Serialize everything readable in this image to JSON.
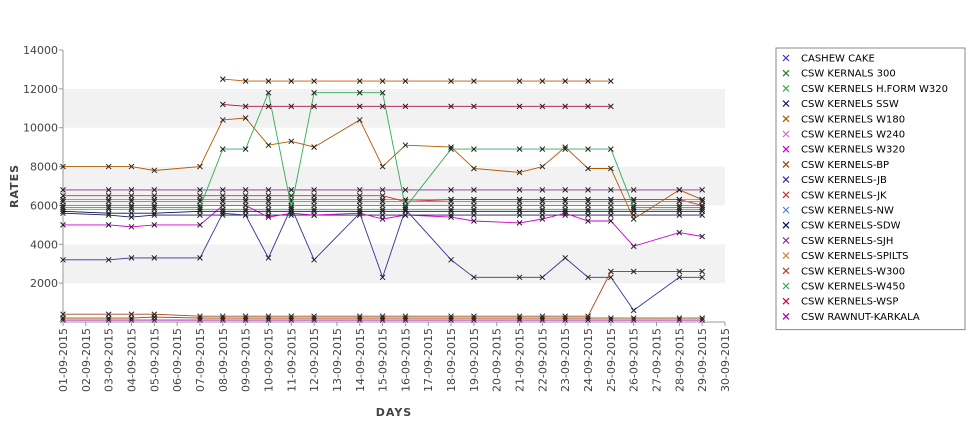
{
  "chart_data": {
    "type": "line",
    "xlabel": "DAYS",
    "ylabel": "RATES",
    "ylim": [
      0,
      14000
    ],
    "yticks": [
      2000,
      4000,
      6000,
      8000,
      10000,
      12000,
      14000
    ],
    "grid": "alternating horizontal bands",
    "legend_position": "right",
    "marker": "x",
    "categories": [
      "01-09-2015",
      "02-09-2015",
      "03-09-2015",
      "04-09-2015",
      "05-09-2015",
      "06-09-2015",
      "07-09-2015",
      "08-09-2015",
      "09-09-2015",
      "10-09-2015",
      "11-09-2015",
      "12-09-2015",
      "13-09-2015",
      "14-09-2015",
      "15-09-2015",
      "16-09-2015",
      "17-09-2015",
      "18-09-2015",
      "19-09-2015",
      "20-09-2015",
      "21-09-2015",
      "22-09-2015",
      "23-09-2015",
      "24-09-2015",
      "25-09-2015",
      "26-09-2015",
      "27-09-2015",
      "28-09-2015",
      "29-09-2015",
      "30-09-2015"
    ],
    "series": [
      {
        "name": "CASHEW CAKE",
        "color": "#3333cc",
        "values": [
          null,
          null,
          null,
          null,
          null,
          null,
          null,
          null,
          null,
          null,
          null,
          null,
          null,
          null,
          null,
          null,
          null,
          null,
          null,
          null,
          null,
          null,
          null,
          null,
          null,
          null,
          null,
          null,
          null,
          null
        ]
      },
      {
        "name": "CSW KERNALS 300",
        "color": "#2a7a2a",
        "values": [
          null,
          null,
          null,
          null,
          null,
          null,
          null,
          null,
          null,
          null,
          null,
          null,
          null,
          null,
          null,
          null,
          null,
          null,
          null,
          null,
          null,
          null,
          null,
          null,
          null,
          null,
          null,
          null,
          null,
          null
        ]
      },
      {
        "name": "CSW KERNELS H.FORM W320",
        "color": "#44aa44",
        "values": [
          5800,
          null,
          5800,
          5800,
          5800,
          null,
          5800,
          5800,
          5800,
          5800,
          5800,
          5800,
          null,
          5800,
          5800,
          5800,
          null,
          5800,
          5800,
          null,
          5800,
          5800,
          5800,
          5800,
          5800,
          5800,
          null,
          5800,
          5800,
          null
        ]
      },
      {
        "name": "CSW KERNELS SSW",
        "color": "#1a1a66",
        "values": [
          5600,
          null,
          5500,
          5400,
          5500,
          null,
          5500,
          5500,
          5500,
          5500,
          5500,
          5500,
          null,
          5500,
          5500,
          5500,
          null,
          5500,
          5500,
          null,
          5500,
          5500,
          5500,
          5500,
          5500,
          5500,
          null,
          5500,
          5500,
          null
        ]
      },
      {
        "name": "CSW KERNELS W180",
        "color": "#b35900",
        "values": [
          8000,
          null,
          8000,
          8000,
          7800,
          null,
          8000,
          10400,
          10500,
          9100,
          9300,
          9000,
          null,
          10400,
          8000,
          9100,
          null,
          9000,
          7900,
          null,
          7700,
          8000,
          9000,
          7900,
          7900,
          5300,
          null,
          6800,
          6300,
          null
        ]
      },
      {
        "name": "CSW KERNELS W240",
        "color": "#cc66cc",
        "values": [
          6300,
          null,
          6300,
          6300,
          6300,
          null,
          6300,
          6300,
          6300,
          6300,
          6300,
          6300,
          null,
          6300,
          6300,
          6300,
          null,
          6300,
          6300,
          null,
          6300,
          6300,
          6300,
          6300,
          6300,
          6300,
          null,
          6300,
          6300,
          null
        ]
      },
      {
        "name": "CSW KERNELS W320",
        "color": "#cc00cc",
        "values": [
          5000,
          null,
          5000,
          4900,
          5000,
          null,
          5000,
          6000,
          6000,
          5400,
          5600,
          5500,
          null,
          5600,
          5300,
          5500,
          null,
          5400,
          5200,
          null,
          5100,
          5300,
          5600,
          5200,
          5200,
          3900,
          null,
          4600,
          4400,
          null
        ]
      },
      {
        "name": "CSW KERNELS-BP",
        "color": "#994400",
        "values": [
          200,
          null,
          200,
          200,
          250,
          null,
          200,
          200,
          200,
          200,
          200,
          200,
          null,
          200,
          200,
          200,
          null,
          200,
          200,
          null,
          200,
          200,
          200,
          200,
          200,
          200,
          null,
          200,
          200,
          null
        ]
      },
      {
        "name": "CSW KERNELS-JB",
        "color": "#333399",
        "values": [
          3200,
          null,
          3200,
          3300,
          3300,
          null,
          3300,
          5600,
          5500,
          3300,
          5900,
          3200,
          null,
          5600,
          2300,
          5800,
          null,
          3200,
          2300,
          null,
          2300,
          2300,
          3300,
          2300,
          2300,
          600,
          null,
          2300,
          2300,
          null
        ]
      },
      {
        "name": "CSW KERNELS-JK",
        "color": "#cc3333",
        "values": [
          6500,
          null,
          6500,
          6500,
          6500,
          null,
          6500,
          6500,
          6500,
          6500,
          6500,
          6500,
          null,
          6500,
          6500,
          6200,
          null,
          6300,
          6300,
          null,
          6300,
          6300,
          6300,
          6300,
          6300,
          6300,
          null,
          6300,
          6000,
          null
        ]
      },
      {
        "name": "CSW KERNELS-NW",
        "color": "#4488cc",
        "values": [
          6000,
          null,
          6000,
          6000,
          6000,
          null,
          6000,
          6000,
          6000,
          6000,
          6000,
          6000,
          null,
          6000,
          6000,
          6000,
          null,
          6000,
          6000,
          null,
          6000,
          6000,
          6000,
          6000,
          6000,
          6000,
          null,
          6000,
          6000,
          null
        ]
      },
      {
        "name": "CSW KERNELS-SDW",
        "color": "#0a0a55",
        "values": [
          5700,
          null,
          5600,
          5600,
          5600,
          null,
          5700,
          5700,
          5700,
          5700,
          5700,
          5700,
          null,
          5700,
          5700,
          5700,
          null,
          5700,
          5700,
          null,
          5700,
          5700,
          5700,
          5700,
          5700,
          5700,
          null,
          5700,
          5700,
          null
        ]
      },
      {
        "name": "CSW KERNELS-SJH",
        "color": "#883388",
        "values": [
          6800,
          null,
          6800,
          6800,
          6800,
          null,
          6800,
          6800,
          6800,
          6800,
          6800,
          6800,
          null,
          6800,
          6800,
          6800,
          null,
          6800,
          6800,
          null,
          6800,
          6800,
          6800,
          6800,
          6800,
          6800,
          null,
          6800,
          6800,
          null
        ]
      },
      {
        "name": "CSW KERNELS-SPILTS",
        "color": "#cc8833",
        "values": [
          6200,
          null,
          6200,
          6200,
          6200,
          null,
          6200,
          6200,
          6200,
          6200,
          6200,
          6200,
          null,
          6200,
          6200,
          6200,
          null,
          6200,
          6200,
          null,
          6200,
          6200,
          6200,
          6200,
          6200,
          6200,
          null,
          6200,
          6200,
          null
        ]
      },
      {
        "name": "CSW KERNELS-W300",
        "color": "#aa4422",
        "values": [
          400,
          null,
          400,
          400,
          400,
          null,
          300,
          300,
          300,
          300,
          300,
          300,
          null,
          300,
          300,
          300,
          null,
          300,
          300,
          null,
          300,
          300,
          300,
          300,
          2600,
          2600,
          null,
          2600,
          2600,
          null
        ]
      },
      {
        "name": "CSW KERNELS-W450",
        "color": "#33aa55",
        "values": [
          5900,
          null,
          5900,
          5900,
          5900,
          null,
          5900,
          8900,
          8900,
          11800,
          5900,
          11800,
          null,
          11800,
          11800,
          5900,
          null,
          8900,
          8900,
          null,
          8900,
          8900,
          8900,
          8900,
          8900,
          5900,
          null,
          5900,
          5900,
          null
        ]
      },
      {
        "name": "CSW KERNELS-WSP",
        "color": "#aa1144",
        "values": [
          null,
          null,
          null,
          null,
          null,
          null,
          null,
          11200,
          11100,
          11100,
          11100,
          11100,
          null,
          11100,
          11100,
          11100,
          null,
          11100,
          11100,
          null,
          11100,
          11100,
          11100,
          11100,
          11100,
          null,
          null,
          null,
          null,
          null
        ]
      },
      {
        "name": "CSW RAWNUT-KARKALA",
        "color": "#aa00aa",
        "values": [
          100,
          null,
          100,
          100,
          100,
          null,
          100,
          100,
          100,
          100,
          100,
          100,
          null,
          100,
          100,
          100,
          null,
          100,
          100,
          null,
          100,
          100,
          100,
          100,
          100,
          100,
          null,
          100,
          100,
          null
        ]
      },
      {
        "name": "_W200",
        "color": "#cc5500",
        "legend": false,
        "values": [
          null,
          null,
          null,
          null,
          null,
          null,
          null,
          12500,
          12400,
          12400,
          12400,
          12400,
          null,
          12400,
          12400,
          12400,
          null,
          12400,
          12400,
          null,
          12400,
          12400,
          12400,
          12400,
          12400,
          null,
          null,
          null,
          null,
          null
        ]
      }
    ]
  }
}
